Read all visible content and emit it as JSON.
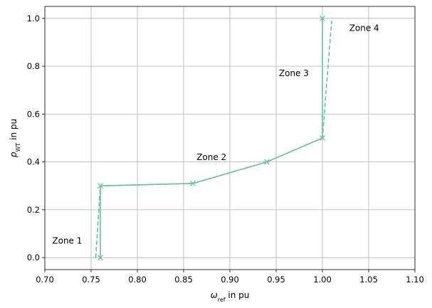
{
  "chart_data": {
    "type": "line",
    "title": "",
    "xlabel": {
      "symbol": "ω",
      "subscript": "ref",
      "suffix": " in pu"
    },
    "ylabel": {
      "symbol": "p",
      "subscript": "WT",
      "suffix": " in pu"
    },
    "xlim": [
      0.7,
      1.1
    ],
    "ylim": [
      -0.05,
      1.05
    ],
    "xticks": [
      "0.70",
      "0.75",
      "0.80",
      "0.85",
      "0.90",
      "0.95",
      "1.00",
      "1.05",
      "1.10"
    ],
    "yticks": [
      "0.0",
      "0.2",
      "0.4",
      "0.6",
      "0.8",
      "1.0"
    ],
    "grid": true,
    "color": "#66c2a5",
    "series": [
      {
        "style": "solid",
        "markers": true,
        "x": [
          0.76,
          0.76,
          0.86,
          0.94,
          1.0,
          1.0
        ],
        "y": [
          0.0,
          0.3,
          0.31,
          0.4,
          0.5,
          1.0
        ]
      },
      {
        "style": "dashed",
        "markers": false,
        "x": [
          0.755,
          0.76,
          0.86,
          0.94,
          1.0,
          1.01
        ],
        "y": [
          0.0,
          0.3,
          0.31,
          0.4,
          0.5,
          0.99
        ]
      }
    ],
    "annotations": [
      {
        "text": "Zone 1",
        "x": 0.708,
        "y": 0.07
      },
      {
        "text": "Zone 2",
        "x": 0.864,
        "y": 0.42
      },
      {
        "text": "Zone 3",
        "x": 0.953,
        "y": 0.77
      },
      {
        "text": "Zone 4",
        "x": 1.029,
        "y": 0.96
      }
    ]
  }
}
